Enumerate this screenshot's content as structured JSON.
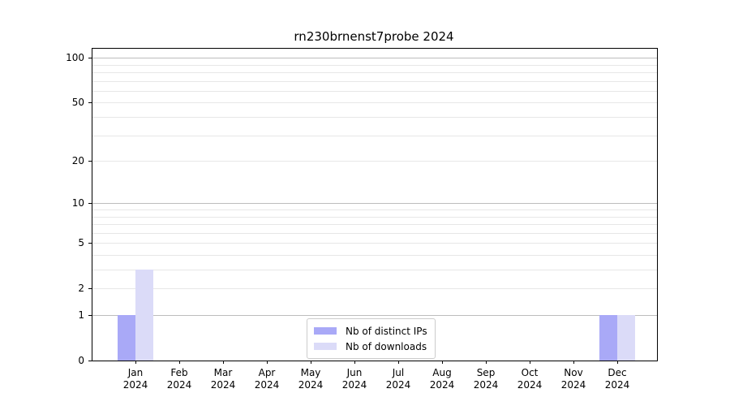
{
  "title": "rn230brnenst7probe 2024",
  "chart_data": {
    "type": "bar",
    "title": "rn230brnenst7probe 2024",
    "categories": [
      "Jan",
      "Feb",
      "Mar",
      "Apr",
      "May",
      "Jun",
      "Jul",
      "Aug",
      "Sep",
      "Oct",
      "Nov",
      "Dec"
    ],
    "year": "2024",
    "series": [
      {
        "name": "Nb of distinct IPs",
        "color": "#a9a9f7",
        "values": [
          1,
          0,
          0,
          0,
          0,
          0,
          0,
          0,
          0,
          0,
          0,
          1
        ]
      },
      {
        "name": "Nb of downloads",
        "color": "#dbdbf8",
        "values": [
          3,
          0,
          0,
          0,
          0,
          0,
          0,
          0,
          0,
          0,
          0,
          1
        ]
      }
    ],
    "y_axis": {
      "scale": "log10(1+y)",
      "tick_values": [
        0,
        1,
        2,
        5,
        10,
        20,
        50,
        100
      ],
      "major_gridlines": [
        1,
        10,
        100
      ],
      "minor_gridlines": [
        2,
        3,
        4,
        5,
        6,
        7,
        8,
        9,
        20,
        30,
        40,
        50,
        60,
        70,
        80,
        90
      ],
      "y_max": 115
    },
    "legend_position": "lower center",
    "grid": true
  },
  "colors": {
    "major_grid": "#bdbdbd",
    "minor_grid": "#e7e7e7",
    "axis": "#000000",
    "legend_border": "#cccccc",
    "background": "#ffffff"
  }
}
